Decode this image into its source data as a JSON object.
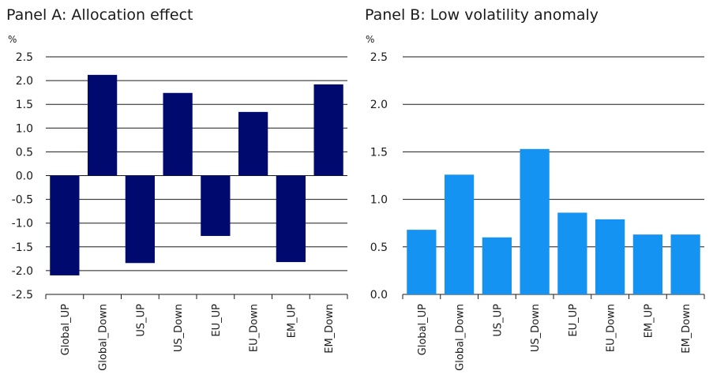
{
  "chart_data": [
    {
      "type": "bar",
      "title": "Panel A: Allocation effect",
      "ylabel": "%",
      "ylim": [
        -2.5,
        2.5
      ],
      "yticks": [
        -2.5,
        -2.0,
        -1.5,
        -1.0,
        -0.5,
        0.0,
        0.5,
        1.0,
        1.5,
        2.0,
        2.5
      ],
      "ytick_labels": [
        "-2.5",
        "-2.0",
        "-1.5",
        "-1.0",
        "-0.5",
        "0.0",
        "0.5",
        "1.0",
        "1.5",
        "2.0",
        "2.5"
      ],
      "categories": [
        "Global_UP",
        "Global_Down",
        "US_UP",
        "US_Down",
        "EU_UP",
        "EU_Down",
        "EM_UP",
        "EM_Down"
      ],
      "values": [
        -2.1,
        2.12,
        -1.84,
        1.74,
        -1.27,
        1.34,
        -1.82,
        1.92
      ],
      "color": "#000a6e",
      "grid": true
    },
    {
      "type": "bar",
      "title": "Panel B: Low volatility anomaly",
      "ylabel": "%",
      "ylim": [
        0,
        2.5
      ],
      "yticks": [
        0.0,
        0.5,
        1.0,
        1.5,
        2.0,
        2.5
      ],
      "ytick_labels": [
        "0.0",
        "0.5",
        "1.0",
        "1.5",
        "2.0",
        "2.5"
      ],
      "categories": [
        "Global_UP",
        "Global_Down",
        "US_UP",
        "US_Down",
        "EU_UP",
        "EU_Down",
        "EM_UP",
        "EM_Down"
      ],
      "values": [
        0.68,
        1.26,
        0.6,
        1.53,
        0.86,
        0.79,
        0.63,
        0.63
      ],
      "color": "#1593f3",
      "grid": true
    }
  ]
}
